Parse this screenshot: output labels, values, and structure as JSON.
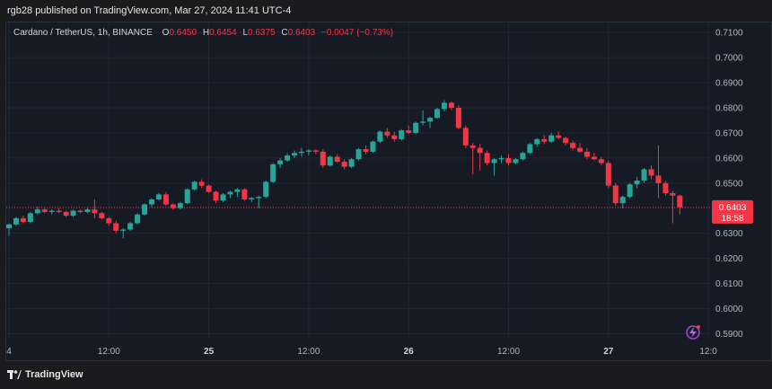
{
  "publish_line": "rgb28 published on TradingView.com, Mar 27, 2024 11:41 UTC-4",
  "legend": {
    "symbol": "Cardano / TetherUS, 1h, BINANCE",
    "open_label": "O",
    "open": "0.6450",
    "high_label": "H",
    "high": "0.6454",
    "low_label": "L",
    "low": "0.6375",
    "close_label": "C",
    "close": "0.6403",
    "change": "−0.0047 (−0.73%)"
  },
  "price_badge": {
    "price": "0.6403",
    "countdown": "18:58",
    "value": 0.6403
  },
  "brand": "TradingView",
  "colors": {
    "up": "#26a69a",
    "down": "#f23645",
    "background": "#161a25",
    "grid": "#232632"
  },
  "chart_data": {
    "type": "candlestick",
    "y_axis": {
      "range": [
        0.588,
        0.714
      ],
      "ticks": [
        "0.7100",
        "0.7000",
        "0.6900",
        "0.6800",
        "0.6700",
        "0.6600",
        "0.6500",
        "0.6400",
        "0.6300",
        "0.6200",
        "0.6100",
        "0.6000",
        "0.5900"
      ],
      "tick_values": [
        0.71,
        0.7,
        0.69,
        0.68,
        0.67,
        0.66,
        0.65,
        0.64,
        0.63,
        0.62,
        0.61,
        0.6,
        0.59
      ],
      "hidden_ticks": [
        "0.6400"
      ]
    },
    "x_axis": {
      "ticks": [
        {
          "label": "4",
          "bold": false,
          "index": 0
        },
        {
          "label": "12:00",
          "bold": false,
          "index": 14
        },
        {
          "label": "25",
          "bold": true,
          "index": 28
        },
        {
          "label": "12:00",
          "bold": false,
          "index": 42
        },
        {
          "label": "26",
          "bold": true,
          "index": 56
        },
        {
          "label": "12:00",
          "bold": false,
          "index": 70
        },
        {
          "label": "27",
          "bold": true,
          "index": 84
        },
        {
          "label": "12:0",
          "bold": false,
          "index": 98
        }
      ]
    },
    "candles": [
      [
        0.632,
        0.634,
        0.629,
        0.6335
      ],
      [
        0.6335,
        0.6365,
        0.633,
        0.636
      ],
      [
        0.636,
        0.637,
        0.634,
        0.6345
      ],
      [
        0.6345,
        0.6385,
        0.634,
        0.638
      ],
      [
        0.638,
        0.6405,
        0.6375,
        0.6395
      ],
      [
        0.6395,
        0.64,
        0.638,
        0.6385
      ],
      [
        0.6385,
        0.6395,
        0.6375,
        0.639
      ],
      [
        0.639,
        0.64,
        0.638,
        0.6385
      ],
      [
        0.6385,
        0.639,
        0.6365,
        0.637
      ],
      [
        0.637,
        0.6395,
        0.6365,
        0.639
      ],
      [
        0.639,
        0.6395,
        0.638,
        0.6385
      ],
      [
        0.6385,
        0.64,
        0.638,
        0.6395
      ],
      [
        0.6395,
        0.6435,
        0.636,
        0.638
      ],
      [
        0.638,
        0.6385,
        0.6355,
        0.636
      ],
      [
        0.636,
        0.6365,
        0.633,
        0.634
      ],
      [
        0.634,
        0.635,
        0.63,
        0.631
      ],
      [
        0.631,
        0.632,
        0.628,
        0.6315
      ],
      [
        0.6315,
        0.6345,
        0.631,
        0.634
      ],
      [
        0.634,
        0.638,
        0.6335,
        0.6375
      ],
      [
        0.6375,
        0.642,
        0.637,
        0.6415
      ],
      [
        0.6415,
        0.644,
        0.6405,
        0.6435
      ],
      [
        0.6435,
        0.646,
        0.643,
        0.6455
      ],
      [
        0.6455,
        0.6465,
        0.641,
        0.6415
      ],
      [
        0.6415,
        0.642,
        0.6395,
        0.64
      ],
      [
        0.64,
        0.6425,
        0.6395,
        0.642
      ],
      [
        0.642,
        0.648,
        0.6415,
        0.6475
      ],
      [
        0.6475,
        0.651,
        0.647,
        0.6505
      ],
      [
        0.6505,
        0.6515,
        0.648,
        0.649
      ],
      [
        0.649,
        0.6495,
        0.646,
        0.6465
      ],
      [
        0.6465,
        0.647,
        0.642,
        0.643
      ],
      [
        0.643,
        0.646,
        0.6425,
        0.6455
      ],
      [
        0.6455,
        0.647,
        0.644,
        0.6465
      ],
      [
        0.6465,
        0.648,
        0.6445,
        0.6475
      ],
      [
        0.6475,
        0.648,
        0.643,
        0.6435
      ],
      [
        0.6435,
        0.6445,
        0.6425,
        0.644
      ],
      [
        0.644,
        0.645,
        0.64,
        0.6445
      ],
      [
        0.6445,
        0.651,
        0.644,
        0.6505
      ],
      [
        0.6505,
        0.658,
        0.65,
        0.6575
      ],
      [
        0.6575,
        0.66,
        0.656,
        0.659
      ],
      [
        0.659,
        0.662,
        0.6585,
        0.661
      ],
      [
        0.661,
        0.663,
        0.66,
        0.662
      ],
      [
        0.662,
        0.664,
        0.6605,
        0.6625
      ],
      [
        0.6625,
        0.6635,
        0.661,
        0.663
      ],
      [
        0.663,
        0.6635,
        0.6615,
        0.6625
      ],
      [
        0.6625,
        0.6635,
        0.656,
        0.657
      ],
      [
        0.657,
        0.661,
        0.6565,
        0.6605
      ],
      [
        0.6605,
        0.6615,
        0.658,
        0.6585
      ],
      [
        0.6585,
        0.6595,
        0.6555,
        0.6565
      ],
      [
        0.6565,
        0.66,
        0.656,
        0.6595
      ],
      [
        0.6595,
        0.664,
        0.659,
        0.6635
      ],
      [
        0.6635,
        0.665,
        0.6615,
        0.6625
      ],
      [
        0.6625,
        0.667,
        0.662,
        0.6665
      ],
      [
        0.6665,
        0.671,
        0.666,
        0.6705
      ],
      [
        0.6705,
        0.672,
        0.668,
        0.669
      ],
      [
        0.669,
        0.6705,
        0.6665,
        0.6675
      ],
      [
        0.6675,
        0.6715,
        0.667,
        0.671
      ],
      [
        0.671,
        0.673,
        0.6695,
        0.67
      ],
      [
        0.67,
        0.6745,
        0.6695,
        0.674
      ],
      [
        0.674,
        0.679,
        0.673,
        0.6745
      ],
      [
        0.6745,
        0.6765,
        0.672,
        0.676
      ],
      [
        0.676,
        0.68,
        0.6755,
        0.6795
      ],
      [
        0.6795,
        0.683,
        0.6785,
        0.682
      ],
      [
        0.682,
        0.6825,
        0.679,
        0.68
      ],
      [
        0.68,
        0.681,
        0.6715,
        0.672
      ],
      [
        0.672,
        0.673,
        0.664,
        0.665
      ],
      [
        0.665,
        0.666,
        0.6535,
        0.664
      ],
      [
        0.664,
        0.6655,
        0.655,
        0.662
      ],
      [
        0.662,
        0.663,
        0.657,
        0.658
      ],
      [
        0.658,
        0.66,
        0.653,
        0.6595
      ],
      [
        0.6595,
        0.661,
        0.658,
        0.66
      ],
      [
        0.66,
        0.6615,
        0.657,
        0.658
      ],
      [
        0.658,
        0.66,
        0.6575,
        0.6595
      ],
      [
        0.6595,
        0.6625,
        0.659,
        0.662
      ],
      [
        0.662,
        0.666,
        0.6615,
        0.6655
      ],
      [
        0.6655,
        0.668,
        0.6645,
        0.6675
      ],
      [
        0.6675,
        0.669,
        0.6655,
        0.6665
      ],
      [
        0.6665,
        0.67,
        0.666,
        0.669
      ],
      [
        0.669,
        0.6705,
        0.6675,
        0.668
      ],
      [
        0.668,
        0.6685,
        0.665,
        0.666
      ],
      [
        0.666,
        0.667,
        0.663,
        0.664
      ],
      [
        0.664,
        0.666,
        0.662,
        0.6625
      ],
      [
        0.6625,
        0.664,
        0.6595,
        0.6605
      ],
      [
        0.6605,
        0.662,
        0.659,
        0.6595
      ],
      [
        0.6595,
        0.6605,
        0.657,
        0.658
      ],
      [
        0.658,
        0.659,
        0.648,
        0.649
      ],
      [
        0.649,
        0.65,
        0.641,
        0.642
      ],
      [
        0.642,
        0.645,
        0.64,
        0.6445
      ],
      [
        0.6445,
        0.65,
        0.644,
        0.6495
      ],
      [
        0.6495,
        0.6525,
        0.648,
        0.651
      ],
      [
        0.651,
        0.656,
        0.65,
        0.6555
      ],
      [
        0.6555,
        0.657,
        0.6515,
        0.653
      ],
      [
        0.653,
        0.665,
        0.644,
        0.65
      ],
      [
        0.65,
        0.651,
        0.645,
        0.646
      ],
      [
        0.646,
        0.647,
        0.634,
        0.645
      ],
      [
        0.645,
        0.6454,
        0.6375,
        0.6403
      ]
    ]
  }
}
